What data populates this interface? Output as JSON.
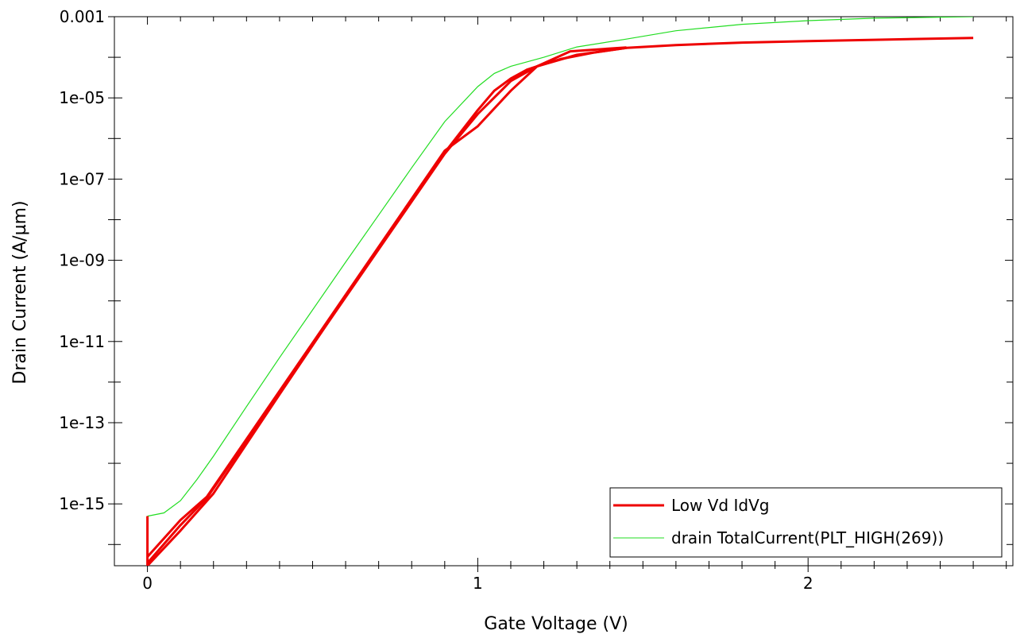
{
  "chart_data": {
    "type": "line",
    "title": "",
    "xlabel": "Gate Voltage (V)",
    "ylabel": "Drain Current (A/µm)",
    "xlim": [
      -0.1,
      2.62
    ],
    "ylim": [
      3e-17,
      0.001
    ],
    "yscale": "log",
    "grid": false,
    "legend_position": "bottom-right",
    "x_ticks": [
      {
        "value": 0,
        "label": "0"
      },
      {
        "value": 1,
        "label": "1"
      },
      {
        "value": 2,
        "label": "2"
      }
    ],
    "y_ticks": [
      {
        "value": 0.001,
        "label": "0.001"
      },
      {
        "value": 1e-05,
        "label": "1e-05"
      },
      {
        "value": 1e-07,
        "label": "1e-07"
      },
      {
        "value": 1e-09,
        "label": "1e-09"
      },
      {
        "value": 1e-11,
        "label": "1e-11"
      },
      {
        "value": 1e-13,
        "label": "1e-13"
      },
      {
        "value": 1e-15,
        "label": "1e-15"
      }
    ],
    "series": [
      {
        "name": "Low Vd IdVg",
        "color": "#ee0000",
        "segments": [
          {
            "x": [
              0,
              0
            ],
            "y": [
              3e-17,
              5e-16
            ]
          },
          {
            "x": [
              0,
              0.1,
              0.2,
              0.3,
              0.4,
              0.5,
              0.6,
              0.7,
              0.8,
              0.9,
              1.0,
              1.05,
              1.1,
              1.15,
              1.18,
              1.25,
              1.35,
              1.45,
              1.6,
              1.8,
              2.0,
              2.2,
              2.5
            ],
            "y": [
              3e-17,
              2.2e-16,
              1.8e-15,
              3e-14,
              5e-13,
              8e-12,
              1.3e-10,
              2e-09,
              3e-08,
              4.5e-07,
              5e-06,
              1.5e-05,
              3e-05,
              5e-05,
              6e-05,
              9e-05,
              0.00013,
              0.00017,
              0.0002,
              0.00023,
              0.00025,
              0.00027,
              0.0003
            ]
          },
          {
            "x": [
              0,
              0.1,
              0.18,
              0.9,
              1.0,
              1.1,
              1.18,
              1.3,
              1.45
            ],
            "y": [
              5e-17,
              4e-16,
              1.5e-15,
              5e-07,
              2e-06,
              1.5e-05,
              6e-05,
              0.000115,
              0.00017
            ]
          },
          {
            "x": [
              0,
              0.1,
              0.18,
              0.9,
              1.0,
              1.1,
              1.18,
              1.28,
              1.45
            ],
            "y": [
              3.5e-17,
              3e-16,
              1.4e-15,
              4.2e-07,
              4e-06,
              2.6e-05,
              6e-05,
              0.00014,
              0.000175
            ]
          }
        ]
      },
      {
        "name": "drain TotalCurrent(PLT_HIGH(269))",
        "color": "#22dd22",
        "x": [
          0,
          0.05,
          0.1,
          0.15,
          0.2,
          0.3,
          0.4,
          0.5,
          0.6,
          0.7,
          0.8,
          0.9,
          1.0,
          1.05,
          1.1,
          1.2,
          1.3,
          1.45,
          1.6,
          1.8,
          2.0,
          2.2,
          2.5
        ],
        "y": [
          5e-16,
          6e-16,
          1.2e-15,
          4e-15,
          1.5e-14,
          2.5e-13,
          4e-12,
          6e-11,
          9e-10,
          1.3e-08,
          1.9e-07,
          2.6e-06,
          1.9e-05,
          4e-05,
          6e-05,
          0.0001,
          0.00018,
          0.00028,
          0.00045,
          0.00065,
          0.0008,
          0.00092,
          0.001
        ]
      }
    ]
  }
}
